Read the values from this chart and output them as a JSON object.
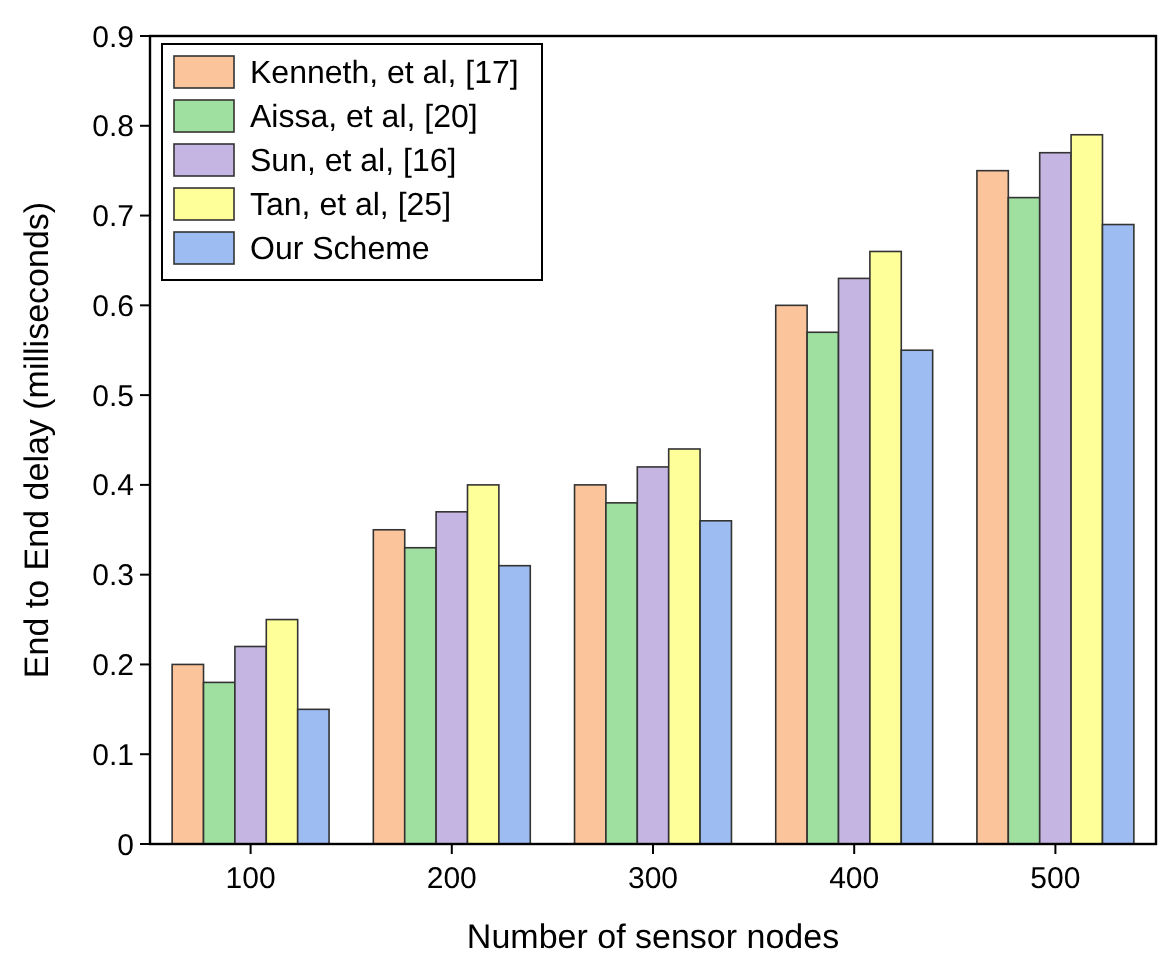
{
  "chart_data": {
    "type": "bar",
    "xlabel": "Number of sensor nodes",
    "ylabel": "End to End delay (milliseconds)",
    "categories": [
      "100",
      "200",
      "300",
      "400",
      "500"
    ],
    "series": [
      {
        "name": "Kenneth, et al, [17]",
        "color": "#fbc49a",
        "values": [
          0.2,
          0.35,
          0.4,
          0.6,
          0.75
        ]
      },
      {
        "name": "Aissa, et al, [20]",
        "color": "#9fdf9f",
        "values": [
          0.18,
          0.33,
          0.38,
          0.57,
          0.72
        ]
      },
      {
        "name": "Sun, et al, [16]",
        "color": "#c5b5e2",
        "values": [
          0.22,
          0.37,
          0.42,
          0.63,
          0.77
        ]
      },
      {
        "name": "Tan, et al, [25]",
        "color": "#ffff99",
        "values": [
          0.25,
          0.4,
          0.44,
          0.66,
          0.79
        ]
      },
      {
        "name": "Our Scheme",
        "color": "#9dbcf2",
        "values": [
          0.15,
          0.31,
          0.36,
          0.55,
          0.69
        ]
      }
    ],
    "ylim": [
      0,
      0.9
    ],
    "yticks": [
      0,
      0.1,
      0.2,
      0.3,
      0.4,
      0.5,
      0.6,
      0.7,
      0.8,
      0.9
    ],
    "grid": false,
    "legend": "top left"
  }
}
